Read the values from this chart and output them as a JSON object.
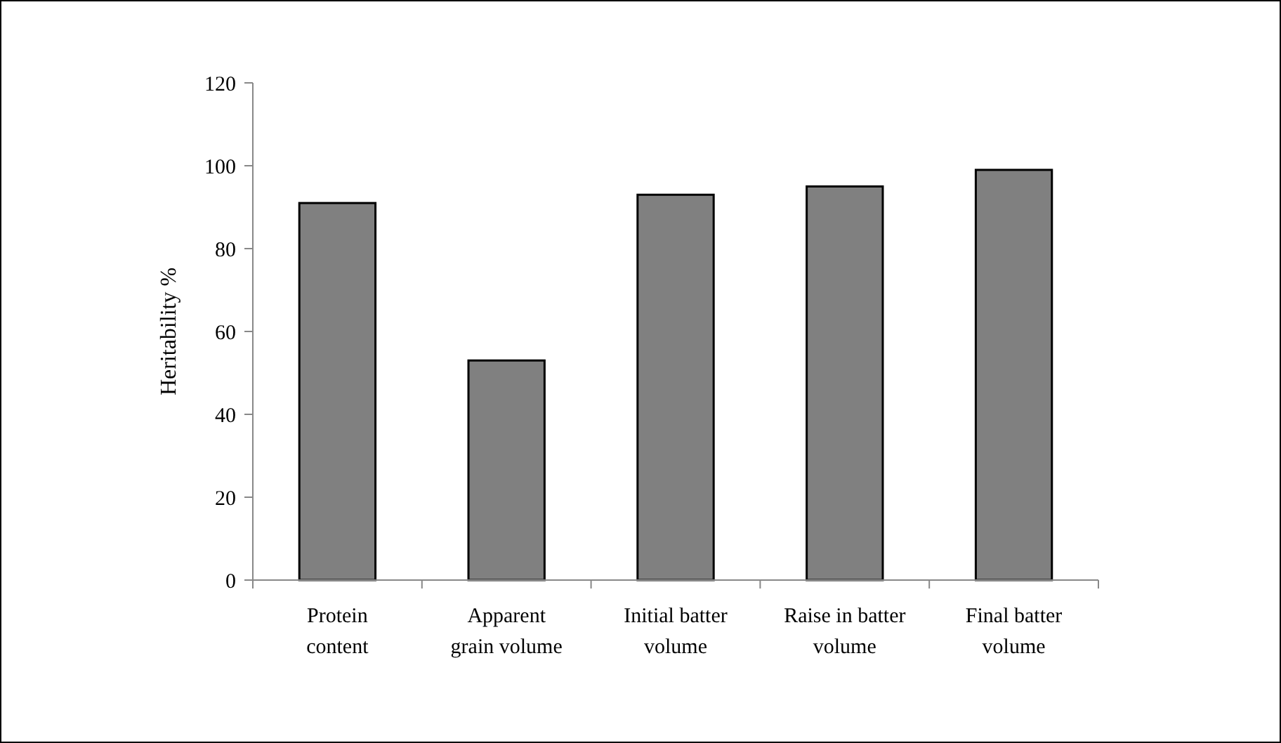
{
  "chart_data": {
    "type": "bar",
    "ylabel": "Heritability %",
    "categories": [
      "Protein content",
      "Apparent grain volume",
      "Initial batter volume",
      "Raise in batter volume",
      "Final batter volume"
    ],
    "values": [
      91,
      53,
      93,
      95,
      99
    ],
    "color": "#808080",
    "ylim": [
      0,
      120
    ],
    "yticks": [
      0,
      20,
      40,
      60,
      80,
      100,
      120
    ]
  }
}
